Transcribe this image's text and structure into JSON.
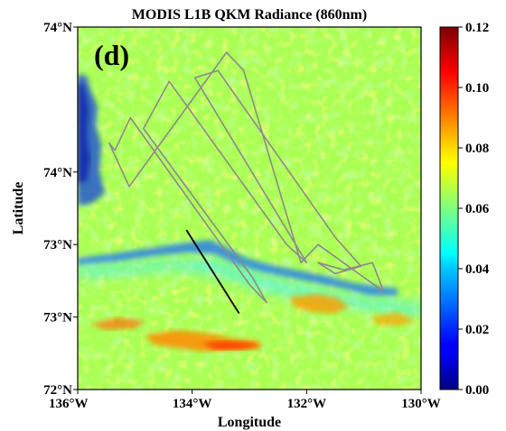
{
  "chart_data": {
    "type": "heatmap",
    "title": "MODIS L1B QKM Radiance (860nm)",
    "panel_label": "(d)",
    "xlabel": "Longitude",
    "ylabel": "Latitude",
    "x_ticks": [
      {
        "value": -136,
        "label": "136°W"
      },
      {
        "value": -134,
        "label": "134°W"
      },
      {
        "value": -132,
        "label": "132°W"
      },
      {
        "value": -130,
        "label": "130°W"
      }
    ],
    "y_ticks": [
      {
        "frac": 0.0,
        "label": "72°N"
      },
      {
        "frac": 0.2,
        "label": "73°N"
      },
      {
        "frac": 0.4,
        "label": "73°N"
      },
      {
        "frac": 0.6,
        "label": "74°N"
      },
      {
        "frac": 1.0,
        "label": "74°N"
      }
    ],
    "xlim": [
      -136,
      -130
    ],
    "colorbar": {
      "colormap": "jet",
      "range": [
        0.0,
        0.12
      ],
      "ticks": [
        {
          "value": 0.0,
          "label": "0.00"
        },
        {
          "value": 0.02,
          "label": "0.02"
        },
        {
          "value": 0.04,
          "label": "0.04"
        },
        {
          "value": 0.06,
          "label": "0.06"
        },
        {
          "value": 0.08,
          "label": "0.08"
        },
        {
          "value": 0.1,
          "label": "0.10"
        },
        {
          "value": 0.12,
          "label": "0.12"
        }
      ]
    },
    "background_value": 0.065,
    "flight_track_color": "#8a8a8a",
    "highlight_segment_color": "#000000",
    "flight_track": [
      [
        -135.35,
        0.66
      ],
      [
        -135.08,
        0.75
      ],
      [
        -133.0,
        0.29
      ],
      [
        -132.7,
        0.24
      ],
      [
        -132.95,
        0.31
      ],
      [
        -134.85,
        0.72
      ],
      [
        -134.4,
        0.85
      ],
      [
        -132.35,
        0.4
      ],
      [
        -132.0,
        0.35
      ],
      [
        -133.95,
        0.86
      ],
      [
        -133.55,
        0.88
      ],
      [
        -131.5,
        0.42
      ],
      [
        -131.05,
        0.34
      ],
      [
        -131.5,
        0.32
      ],
      [
        -131.8,
        0.35
      ],
      [
        -131.35,
        0.33
      ],
      [
        -130.85,
        0.35
      ],
      [
        -130.65,
        0.27
      ],
      [
        -131.8,
        0.4
      ],
      [
        -132.1,
        0.35
      ],
      [
        -133.1,
        0.88
      ],
      [
        -133.4,
        0.93
      ],
      [
        -135.1,
        0.56
      ],
      [
        -135.45,
        0.68
      ]
    ],
    "highlight_segment": [
      [
        -134.1,
        0.44
      ],
      [
        -133.18,
        0.21
      ]
    ]
  }
}
